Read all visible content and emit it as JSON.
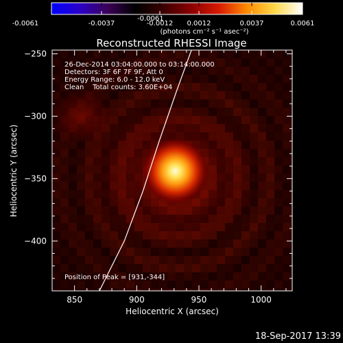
{
  "colorbar": {
    "tick_labels": [
      "-0.0061",
      "-0.0037",
      "-0.0012",
      "0.0012",
      "0.0037",
      "0.0061"
    ],
    "unit_label": "(photons cm⁻² s⁻¹ asec⁻²)",
    "range": [
      -0.0061,
      0.0061
    ],
    "colors": [
      "#0000ff",
      "#2a00c8",
      "#3c005a",
      "#000000",
      "#3a0000",
      "#8a0000",
      "#d81a00",
      "#ff8a00",
      "#ffd84a",
      "#ffffff"
    ]
  },
  "chart_data": {
    "type": "heatmap",
    "title": "Reconstructed RHESSI Image",
    "xlabel": "Heliocentric X (arcsec)",
    "ylabel": "Heliocentric Y (arcsec)",
    "xlim": [
      832,
      1025
    ],
    "ylim": [
      -440,
      -247
    ],
    "x_ticks": [
      850,
      900,
      950,
      1000
    ],
    "y_ticks": [
      -250,
      -300,
      -350,
      -400
    ],
    "x_tick_labels": [
      "850",
      "900",
      "950",
      "1000"
    ],
    "y_tick_labels": [
      "−250",
      "−300",
      "−350",
      "−400"
    ],
    "annotations": [
      "26-Dec-2014 03:04:00.000 to 03:14:00.000",
      "Detectors: 3F 6F 7F 9F, Att 0",
      "Energy Range: 6.0 - 12.0 keV",
      "Clean    Total counts: 3.60E+04"
    ],
    "peak": {
      "label": "Position of Peak = [931,-344]",
      "x": 931,
      "y": -344
    },
    "limb_curve": [
      [
        870,
        -440
      ],
      [
        890,
        -400
      ],
      [
        905,
        -360
      ],
      [
        918,
        -320
      ],
      [
        932,
        -280
      ],
      [
        944,
        -247
      ]
    ],
    "grid": false
  },
  "footer": {
    "date": "18-Sep-2017 13:39"
  }
}
